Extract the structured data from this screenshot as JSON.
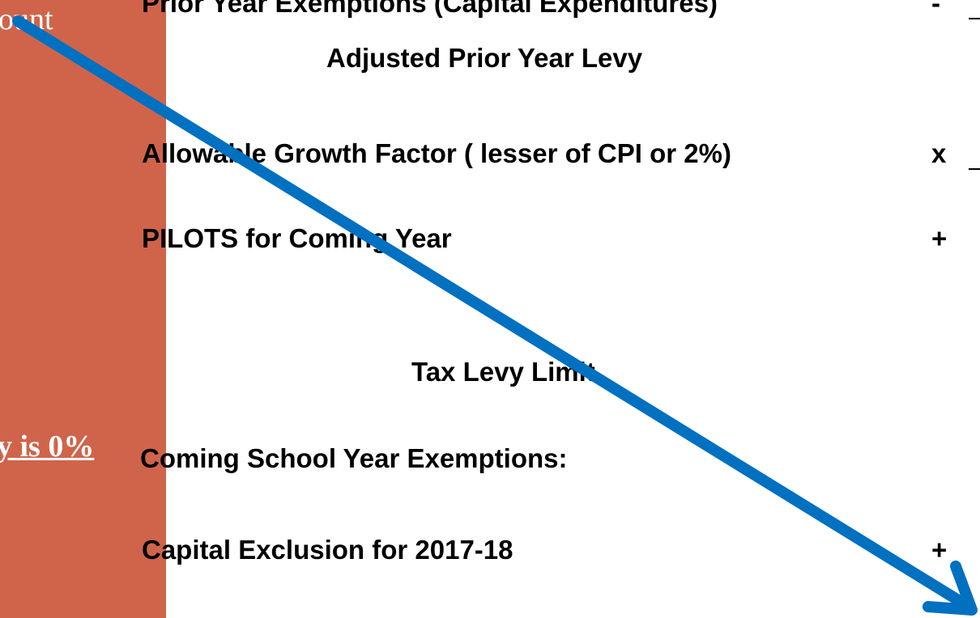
{
  "left_panel": {
    "top_fragment": "ount",
    "bottom_fragment": "y is 0%"
  },
  "rows": [
    {
      "label": "Prior Year Exemptions (Capital Expenditures)",
      "operator": "-"
    },
    {
      "label": "Adjusted Prior Year Levy"
    },
    {
      "label": "Allowable Growth Factor ( lesser of CPI or 2%)",
      "operator": "x"
    },
    {
      "label": "PILOTS for Coming Year",
      "operator": "+"
    },
    {
      "label": "Tax Levy Limit"
    },
    {
      "label": "Coming School Year Exemptions:"
    },
    {
      "label": "Capital Exclusion for 2017-18",
      "operator": "+"
    }
  ]
}
